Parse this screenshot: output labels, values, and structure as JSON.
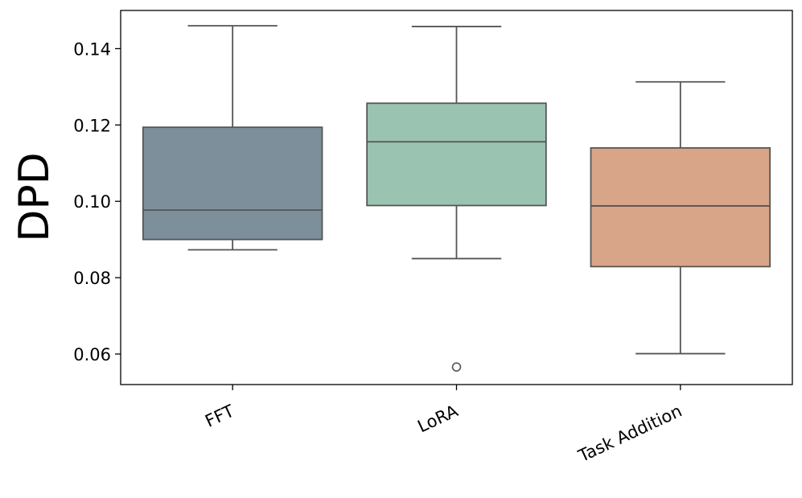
{
  "chart_data": {
    "type": "box",
    "title": "",
    "xlabel": "",
    "ylabel": "DPD",
    "ylim": [
      0.052,
      0.15
    ],
    "yticks": [
      0.06,
      0.08,
      0.1,
      0.12,
      0.14
    ],
    "ytick_labels": [
      "0.06",
      "0.08",
      "0.10",
      "0.12",
      "0.14"
    ],
    "grid": false,
    "categories": [
      "FFT",
      "LoRA",
      "Task Addition"
    ],
    "boxes": [
      {
        "name": "FFT",
        "whisker_low": 0.0873,
        "q1": 0.09,
        "median": 0.0977,
        "q3": 0.1194,
        "whisker_high": 0.146,
        "outliers": [],
        "color": "#7e8f9c"
      },
      {
        "name": "LoRA",
        "whisker_low": 0.085,
        "q1": 0.0989,
        "median": 0.1156,
        "q3": 0.1257,
        "whisker_high": 0.1458,
        "outliers": [
          0.0566
        ],
        "color": "#9ac3b2"
      },
      {
        "name": "Task Addition",
        "whisker_low": 0.0601,
        "q1": 0.0829,
        "median": 0.0988,
        "q3": 0.114,
        "whisker_high": 0.1313,
        "outliers": [],
        "color": "#d8a588"
      }
    ],
    "line_color": "#555555",
    "axis_color": "#000000"
  }
}
